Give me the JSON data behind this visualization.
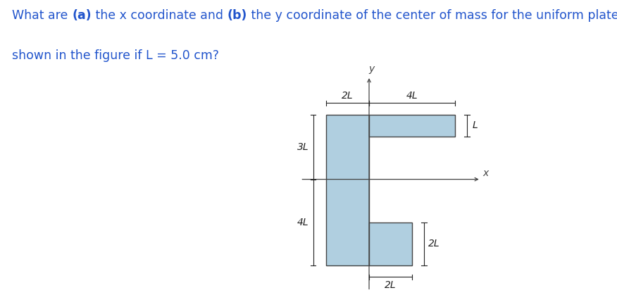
{
  "fig_width": 8.76,
  "fig_height": 4.36,
  "background_color": "#ffffff",
  "plate_fill_color": "#b0cfe0",
  "plate_edge_color": "#444444",
  "annotation_color": "#222222",
  "axis_color": "#444444",
  "title_color": "#2255cc",
  "title_fontsize": 12.5,
  "dim_label_fontsize": 10,
  "axis_label_fontsize": 10,
  "title_line1": "What are (a) the x coordinate and (b) the y coordinate of the center of mass for the uniform plate",
  "title_line2": "shown in the figure if L = 5.0 cm?",
  "bold_parts": [
    "(a)",
    "(b)"
  ]
}
